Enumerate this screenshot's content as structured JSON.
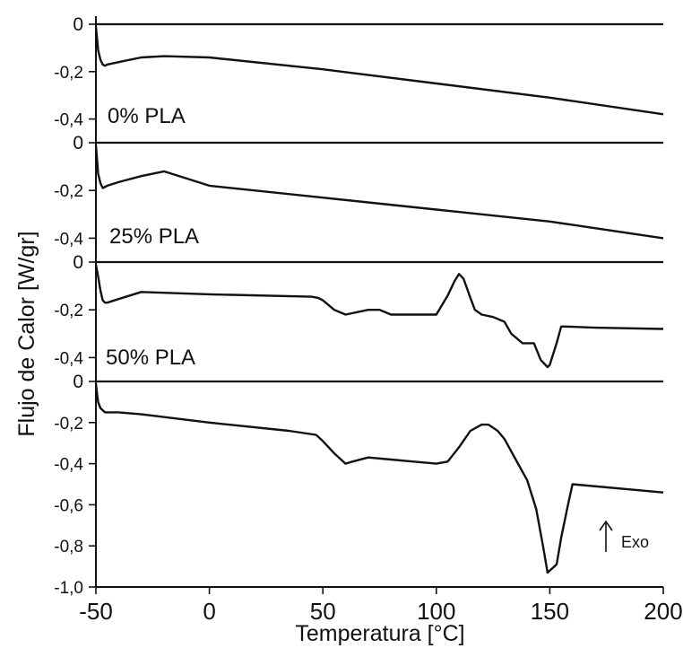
{
  "chart_data": {
    "type": "line",
    "xlabel": "Temperatura [°C]",
    "ylabel": "Flujo de Calor [W/gr]",
    "xlim": [
      -50,
      200
    ],
    "x_ticks": [
      "-50",
      "0",
      "50",
      "100",
      "150",
      "200"
    ],
    "annotation": "Exo",
    "panels": [
      {
        "label": "0% PLA",
        "ylim": [
          -0.5,
          0
        ],
        "y_ticks": [
          "0",
          "-0,2",
          "-0,4"
        ],
        "x": [
          -50,
          -49.5,
          -49,
          -48,
          -47,
          -46,
          -45,
          -40,
          -30,
          -20,
          0,
          50,
          100,
          150,
          200
        ],
        "y": [
          -0.01,
          -0.06,
          -0.11,
          -0.15,
          -0.17,
          -0.175,
          -0.17,
          -0.16,
          -0.14,
          -0.135,
          -0.14,
          -0.19,
          -0.25,
          -0.31,
          -0.38
        ]
      },
      {
        "label": "25% PLA",
        "ylim": [
          -0.5,
          0
        ],
        "y_ticks": [
          "0",
          "-0,2",
          "-0,4"
        ],
        "x": [
          -50,
          -49.5,
          -49,
          -48,
          -47,
          -45,
          -40,
          -30,
          -20,
          -10,
          0,
          50,
          100,
          150,
          200
        ],
        "y": [
          -0.01,
          -0.07,
          -0.13,
          -0.17,
          -0.19,
          -0.18,
          -0.165,
          -0.14,
          -0.12,
          -0.15,
          -0.18,
          -0.23,
          -0.28,
          -0.33,
          -0.4
        ]
      },
      {
        "label": "50% PLA",
        "ylim": [
          -0.5,
          0
        ],
        "y_ticks": [
          "0",
          "-0,2",
          "-0,4"
        ],
        "x": [
          -50,
          -49,
          -48,
          -47,
          -46,
          -45,
          -40,
          -30,
          0,
          45,
          48,
          50,
          55,
          60,
          70,
          75,
          80,
          90,
          100,
          105,
          108,
          110,
          112,
          115,
          117,
          120,
          125,
          130,
          133,
          138,
          143,
          146,
          149,
          150,
          151,
          153,
          155,
          157,
          170,
          200
        ],
        "y": [
          -0.01,
          -0.06,
          -0.12,
          -0.16,
          -0.17,
          -0.17,
          -0.155,
          -0.125,
          -0.135,
          -0.145,
          -0.15,
          -0.16,
          -0.2,
          -0.22,
          -0.2,
          -0.2,
          -0.22,
          -0.22,
          -0.22,
          -0.14,
          -0.08,
          -0.05,
          -0.07,
          -0.15,
          -0.2,
          -0.22,
          -0.23,
          -0.25,
          -0.3,
          -0.34,
          -0.34,
          -0.41,
          -0.44,
          -0.43,
          -0.4,
          -0.34,
          -0.27,
          -0.27,
          -0.275,
          -0.28
        ]
      },
      {
        "label": "",
        "ylim": [
          -1.0,
          0
        ],
        "y_ticks": [
          "0",
          "-0,2",
          "-0,4",
          "-0,6",
          "-0,8",
          "-1,0"
        ],
        "x": [
          -50,
          -49.5,
          -49,
          -48,
          -47,
          -46,
          -45,
          -40,
          -30,
          0,
          35,
          47,
          50,
          55,
          60,
          63,
          70,
          80,
          90,
          100,
          105,
          110,
          115,
          120,
          123,
          127,
          130,
          135,
          140,
          144,
          147,
          149,
          150,
          153,
          155,
          158,
          160,
          200
        ],
        "y": [
          -0.01,
          -0.06,
          -0.1,
          -0.13,
          -0.14,
          -0.15,
          -0.15,
          -0.15,
          -0.16,
          -0.2,
          -0.24,
          -0.26,
          -0.29,
          -0.35,
          -0.4,
          -0.39,
          -0.37,
          -0.38,
          -0.39,
          -0.4,
          -0.39,
          -0.32,
          -0.24,
          -0.21,
          -0.21,
          -0.24,
          -0.28,
          -0.38,
          -0.48,
          -0.62,
          -0.8,
          -0.93,
          -0.92,
          -0.89,
          -0.76,
          -0.6,
          -0.5,
          -0.54
        ]
      }
    ]
  }
}
